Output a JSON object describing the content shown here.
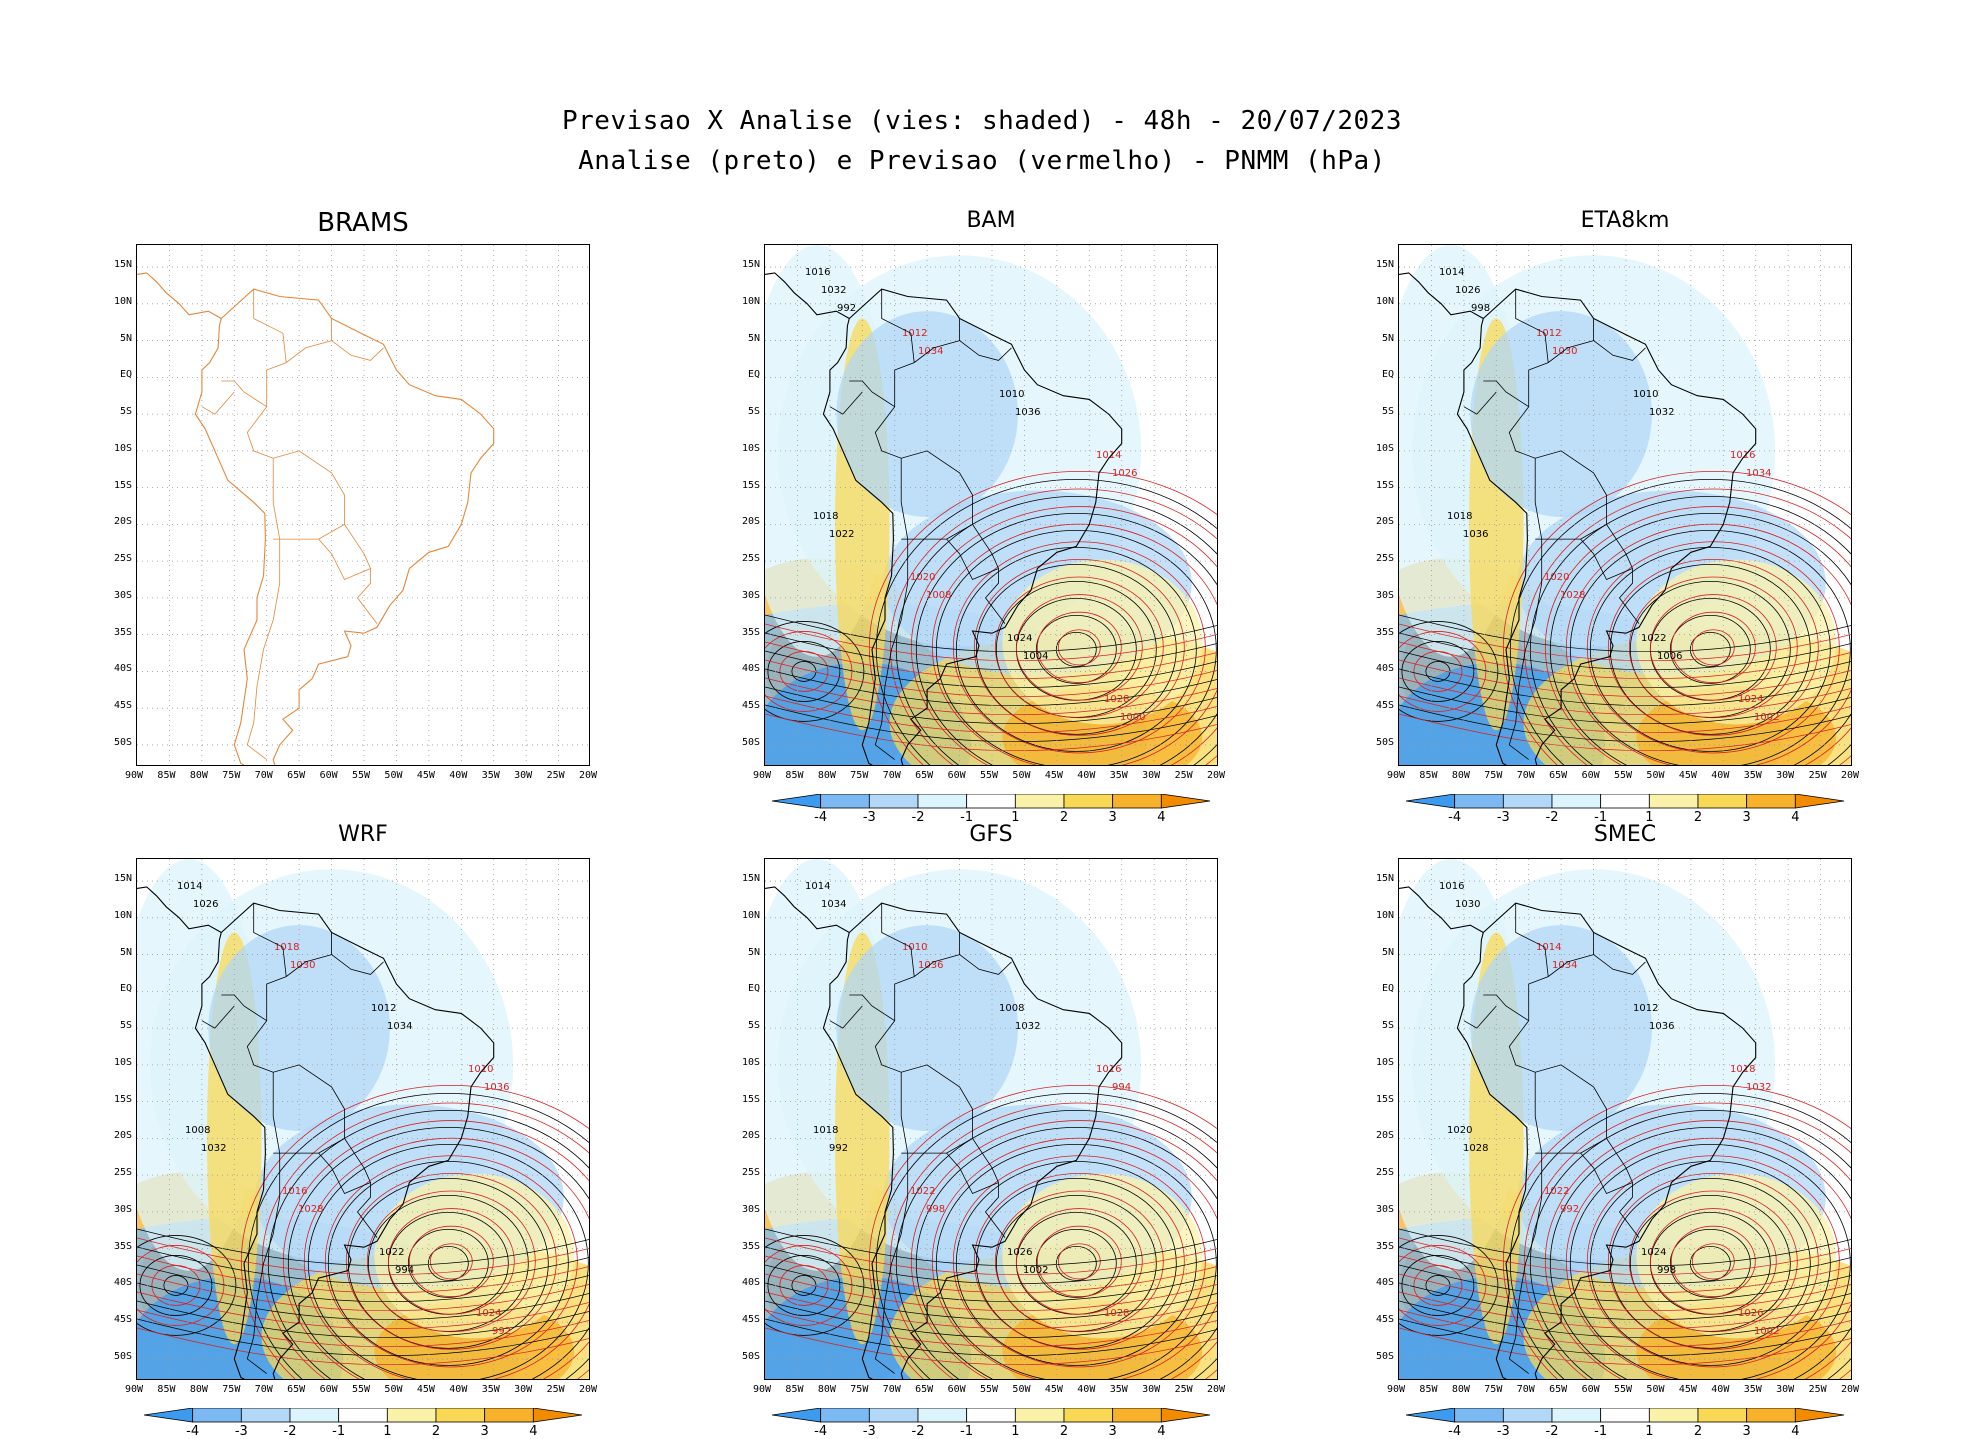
{
  "header": {
    "line1": "Previsao X Analise (vies: shaded) - 48h - 20/07/2023",
    "line2": "Analise (preto) e Previsao (vermelho) - PNMM (hPa)"
  },
  "axes": {
    "lat_labels": [
      "15N",
      "10N",
      "5N",
      "EQ",
      "5S",
      "10S",
      "15S",
      "20S",
      "25S",
      "30S",
      "35S",
      "40S",
      "45S",
      "50S"
    ],
    "lon_labels": [
      "90W",
      "85W",
      "80W",
      "75W",
      "70W",
      "65W",
      "60W",
      "55W",
      "50W",
      "45W",
      "40W",
      "35W",
      "30W",
      "25W",
      "20W"
    ]
  },
  "colorbar": {
    "labels": [
      "-4",
      "-3",
      "-2",
      "-1",
      "1",
      "2",
      "3",
      "4"
    ],
    "colors": [
      "#3d9bef",
      "#7cb9f2",
      "#b2d7f7",
      "#dcf4fb",
      "#ffffff",
      "#fbf2a9",
      "#f9d856",
      "#f7b12a",
      "#f28b00"
    ]
  },
  "colors": {
    "analysis": "#000000",
    "forecast": "#d62020",
    "coast_brams": "#e3873a"
  },
  "panels": [
    {
      "title": "BRAMS",
      "shaded": false,
      "isobar_labels": []
    },
    {
      "title": "BAM",
      "shaded": true,
      "isobar_labels": [
        "1016",
        "1012",
        "1010",
        "1014",
        "1018",
        "1020",
        "1024",
        "1028",
        "1032",
        "1034",
        "1036",
        "1026",
        "1022",
        "1008",
        "1004",
        "1000",
        "992"
      ]
    },
    {
      "title": "ETA8km",
      "shaded": true,
      "isobar_labels": [
        "1014",
        "1012",
        "1010",
        "1016",
        "1018",
        "1020",
        "1022",
        "1024",
        "1026",
        "1030",
        "1032",
        "1034",
        "1036",
        "1028",
        "1006",
        "1002",
        "998"
      ]
    },
    {
      "title": "WRF",
      "shaded": true,
      "isobar_labels": [
        "1014",
        "1018",
        "1012",
        "1010",
        "1008",
        "1016",
        "1022",
        "1024",
        "1026",
        "1030",
        "1034",
        "1036",
        "1032",
        "1028",
        "994",
        "992"
      ]
    },
    {
      "title": "GFS",
      "shaded": true,
      "isobar_labels": [
        "1014",
        "1010",
        "1008",
        "1016",
        "1018",
        "1022",
        "1026",
        "1028",
        "1034",
        "1036",
        "1032",
        "994",
        "992",
        "998",
        "1002"
      ]
    },
    {
      "title": "SMEC",
      "shaded": true,
      "isobar_labels": [
        "1016",
        "1014",
        "1012",
        "1018",
        "1020",
        "1022",
        "1024",
        "1026",
        "1030",
        "1034",
        "1036",
        "1032",
        "1028",
        "992",
        "998",
        "1002"
      ]
    }
  ]
}
